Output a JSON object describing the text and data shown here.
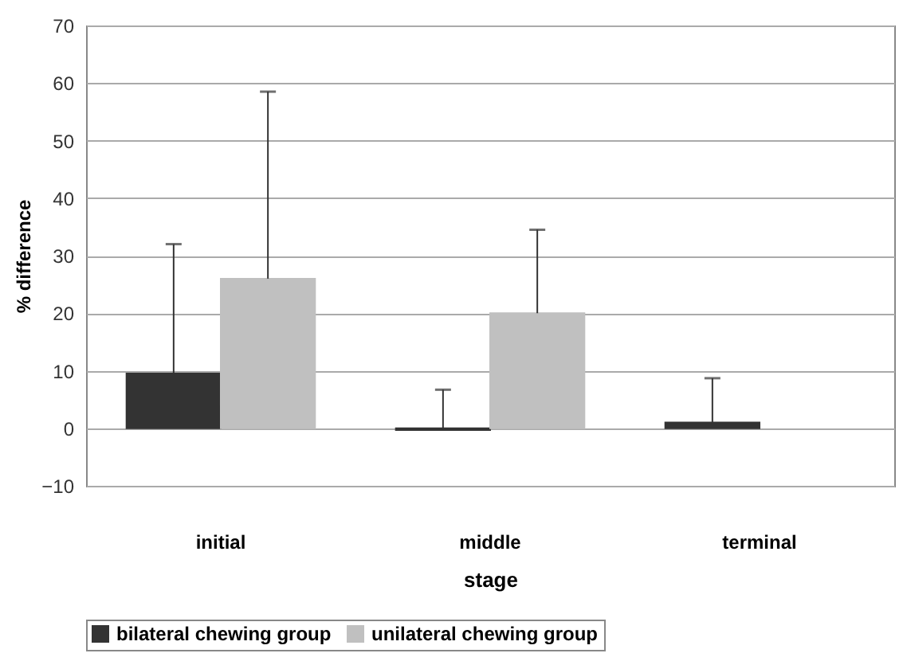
{
  "chart_data": {
    "type": "bar",
    "xlabel": "stage",
    "ylabel": "% difference",
    "categories": [
      "initial",
      "middle",
      "terminal"
    ],
    "series": [
      {
        "name": "bilateral chewing group",
        "color": "#333333",
        "values": [
          9.5,
          -0.3,
          1
        ],
        "errors": [
          [
            9.5,
            32
          ],
          [
            -0.3,
            6.7
          ],
          [
            1,
            8.7
          ]
        ]
      },
      {
        "name": "unilateral chewing group",
        "color": "#c0c0c0",
        "values": [
          26,
          20,
          null
        ],
        "errors": [
          [
            26,
            58.5
          ],
          [
            20,
            34.5
          ],
          null
        ]
      }
    ],
    "ylim": [
      -10,
      70
    ],
    "yticks": [
      -10,
      0,
      10,
      20,
      30,
      40,
      50,
      60,
      70
    ],
    "grid": "y",
    "legend": "bottom"
  }
}
